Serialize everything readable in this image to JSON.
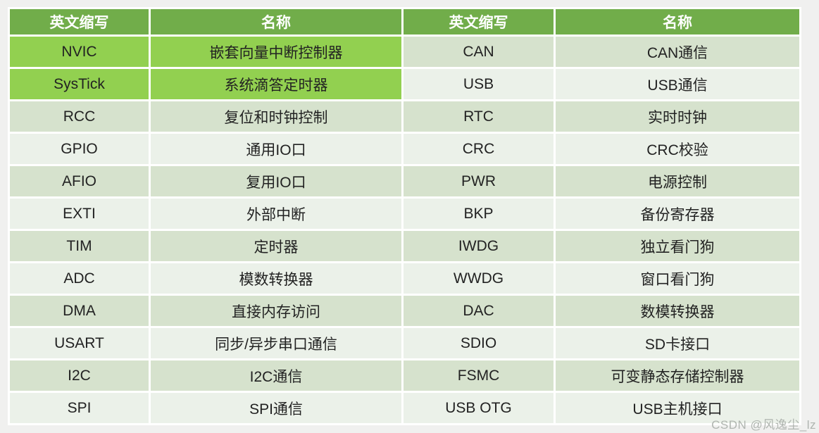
{
  "page": {
    "background": "#F0F0EF",
    "watermark": "CSDN @风逸尘_lz"
  },
  "table": {
    "colors": {
      "header_bg": "#71AD4A",
      "highlight": "#92D050",
      "row_dark": "#D6E2CD",
      "row_light": "#EBF1E9",
      "border": "#FFFFFF",
      "header_text": "#FFFFFF",
      "cell_text": "#222222"
    },
    "headers": [
      "英文缩写",
      "名称",
      "英文缩写",
      "名称"
    ],
    "rows": [
      {
        "abbr_left": "NVIC",
        "name_left": "嵌套向量中断控制器",
        "abbr_right": "CAN",
        "name_right": "CAN通信",
        "left_highlight": true
      },
      {
        "abbr_left": "SysTick",
        "name_left": "系统滴答定时器",
        "abbr_right": "USB",
        "name_right": "USB通信",
        "left_highlight": true
      },
      {
        "abbr_left": "RCC",
        "name_left": "复位和时钟控制",
        "abbr_right": "RTC",
        "name_right": "实时时钟",
        "left_highlight": false
      },
      {
        "abbr_left": "GPIO",
        "name_left": "通用IO口",
        "abbr_right": "CRC",
        "name_right": "CRC校验",
        "left_highlight": false
      },
      {
        "abbr_left": "AFIO",
        "name_left": "复用IO口",
        "abbr_right": "PWR",
        "name_right": "电源控制",
        "left_highlight": false
      },
      {
        "abbr_left": "EXTI",
        "name_left": "外部中断",
        "abbr_right": "BKP",
        "name_right": "备份寄存器",
        "left_highlight": false
      },
      {
        "abbr_left": "TIM",
        "name_left": "定时器",
        "abbr_right": "IWDG",
        "name_right": "独立看门狗",
        "left_highlight": false
      },
      {
        "abbr_left": "ADC",
        "name_left": "模数转换器",
        "abbr_right": "WWDG",
        "name_right": "窗口看门狗",
        "left_highlight": false
      },
      {
        "abbr_left": "DMA",
        "name_left": "直接内存访问",
        "abbr_right": "DAC",
        "name_right": "数模转换器",
        "left_highlight": false
      },
      {
        "abbr_left": "USART",
        "name_left": "同步/异步串口通信",
        "abbr_right": "SDIO",
        "name_right": "SD卡接口",
        "left_highlight": false
      },
      {
        "abbr_left": "I2C",
        "name_left": "I2C通信",
        "abbr_right": "FSMC",
        "name_right": "可变静态存储控制器",
        "left_highlight": false
      },
      {
        "abbr_left": "SPI",
        "name_left": "SPI通信",
        "abbr_right": "USB OTG",
        "name_right": "USB主机接口",
        "left_highlight": false
      }
    ]
  }
}
